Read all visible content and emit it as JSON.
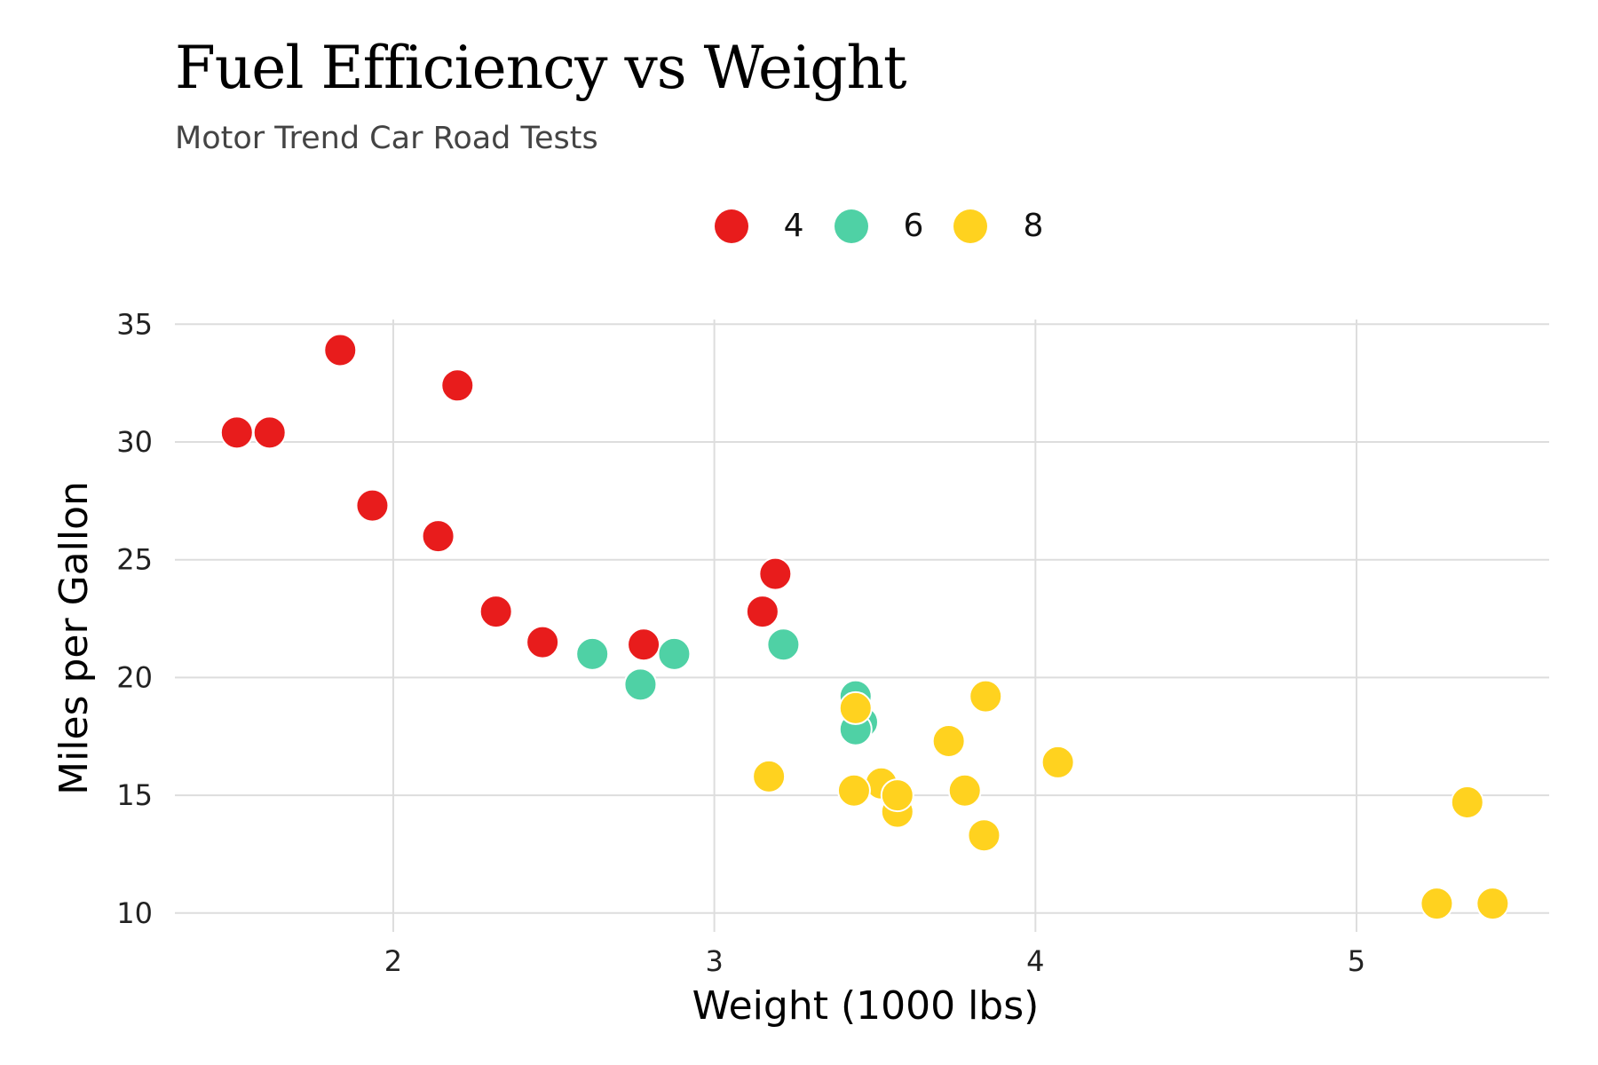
{
  "chart_data": {
    "type": "scatter",
    "title": "Fuel Efficiency vs Weight",
    "subtitle": "Motor Trend Car Road Tests",
    "xlabel": "Weight (1000 lbs)",
    "ylabel": "Miles per Gallon",
    "xlim": [
      1.32,
      5.6
    ],
    "ylim": [
      9.2,
      35.2
    ],
    "xticks": [
      2,
      3,
      4,
      5
    ],
    "yticks": [
      10,
      15,
      20,
      25,
      30,
      35
    ],
    "grid": true,
    "legend_position": "top",
    "series": [
      {
        "name": "4",
        "color": "#e81c1c",
        "points": [
          {
            "x": 2.32,
            "y": 22.8
          },
          {
            "x": 3.19,
            "y": 24.4
          },
          {
            "x": 3.15,
            "y": 22.8
          },
          {
            "x": 2.2,
            "y": 32.4
          },
          {
            "x": 1.615,
            "y": 30.4
          },
          {
            "x": 1.835,
            "y": 33.9
          },
          {
            "x": 2.465,
            "y": 21.5
          },
          {
            "x": 1.935,
            "y": 27.3
          },
          {
            "x": 2.14,
            "y": 26.0
          },
          {
            "x": 1.513,
            "y": 30.4
          },
          {
            "x": 2.78,
            "y": 21.4
          }
        ]
      },
      {
        "name": "6",
        "color": "#4fd1a5",
        "points": [
          {
            "x": 2.62,
            "y": 21.0
          },
          {
            "x": 2.875,
            "y": 21.0
          },
          {
            "x": 3.215,
            "y": 21.4
          },
          {
            "x": 3.46,
            "y": 18.1
          },
          {
            "x": 3.44,
            "y": 19.2
          },
          {
            "x": 3.44,
            "y": 17.8
          },
          {
            "x": 2.77,
            "y": 19.7
          }
        ]
      },
      {
        "name": "8",
        "color": "#ffd21f",
        "points": [
          {
            "x": 3.44,
            "y": 18.7
          },
          {
            "x": 3.57,
            "y": 14.3
          },
          {
            "x": 4.07,
            "y": 16.4
          },
          {
            "x": 3.73,
            "y": 17.3
          },
          {
            "x": 3.78,
            "y": 15.2
          },
          {
            "x": 5.25,
            "y": 10.4
          },
          {
            "x": 5.424,
            "y": 10.4
          },
          {
            "x": 5.345,
            "y": 14.7
          },
          {
            "x": 3.52,
            "y": 15.5
          },
          {
            "x": 3.435,
            "y": 15.2
          },
          {
            "x": 3.84,
            "y": 13.3
          },
          {
            "x": 3.845,
            "y": 19.2
          },
          {
            "x": 3.17,
            "y": 15.8
          },
          {
            "x": 3.57,
            "y": 15.0
          }
        ]
      }
    ]
  },
  "colors": {
    "grid": "#dddddd",
    "point_stroke": "#ffffff"
  }
}
